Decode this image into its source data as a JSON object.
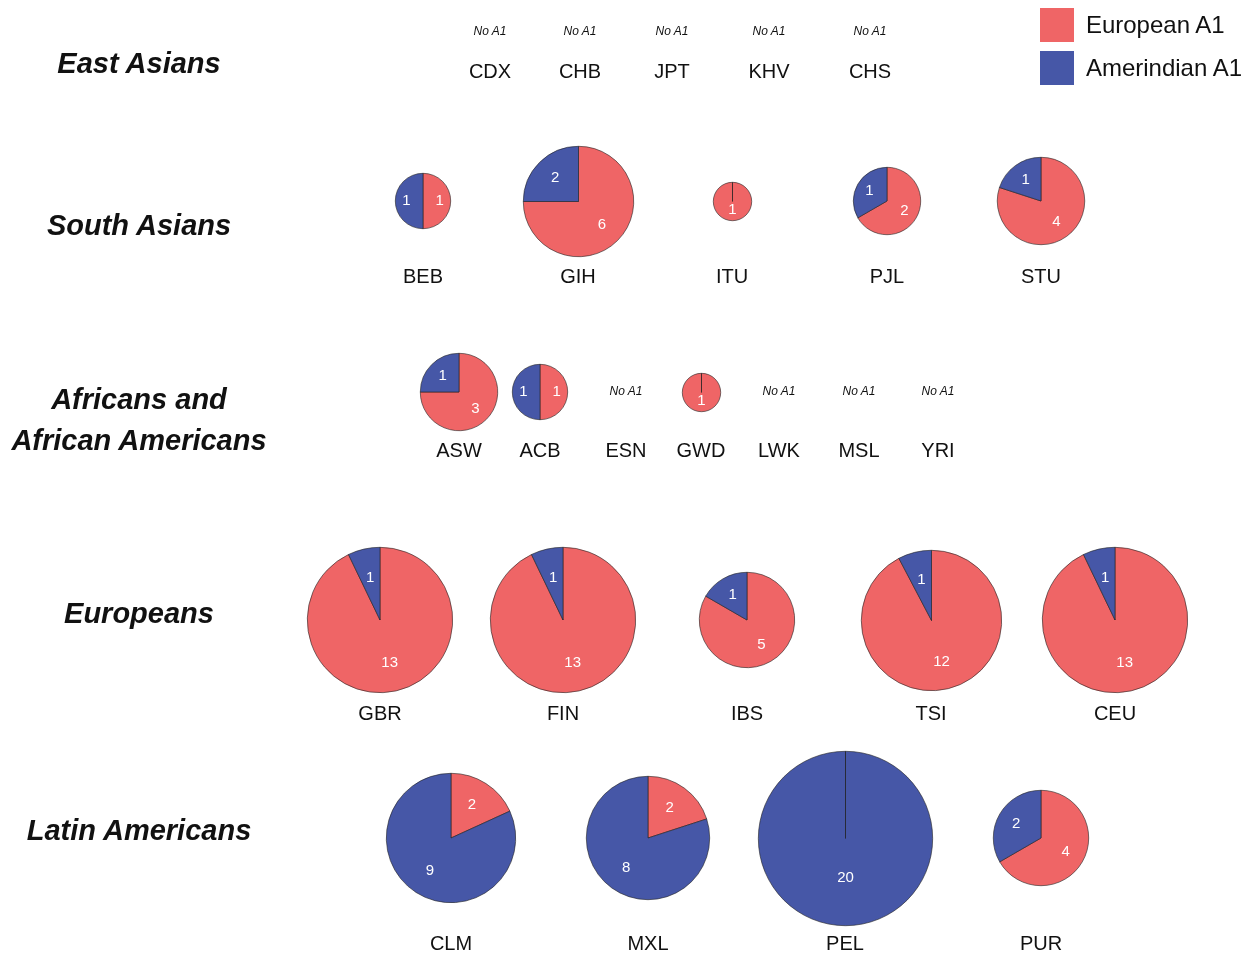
{
  "chart_data": [
    {
      "type": "other",
      "title": "East Asians"
    },
    {
      "type": "other",
      "title": "CDX",
      "annotations": [
        "No A1"
      ]
    },
    {
      "type": "other",
      "title": "CHB",
      "annotations": [
        "No A1"
      ]
    },
    {
      "type": "other",
      "title": "JPT",
      "annotations": [
        "No A1"
      ]
    },
    {
      "type": "other",
      "title": "KHV",
      "annotations": [
        "No A1"
      ]
    },
    {
      "type": "other",
      "title": "CHS",
      "annotations": [
        "No A1"
      ]
    },
    {
      "type": "other",
      "title": "South Asians"
    },
    {
      "type": "pie",
      "title": "BEB",
      "categories": [
        "European A1",
        "Amerindian A1"
      ],
      "values": [
        1,
        1
      ],
      "colors": [
        "#ef6566",
        "#4657a7"
      ],
      "data_labels": true,
      "legend": "top right"
    },
    {
      "type": "pie",
      "title": "GIH",
      "categories": [
        null,
        null
      ],
      "values": [
        6,
        2
      ],
      "colors": [
        "#ef6566",
        "#4657a7"
      ],
      "data_labels": true
    },
    {
      "type": "pie",
      "title": "ITU",
      "categories": [
        null,
        null
      ],
      "values": [
        1,
        0
      ],
      "colors": [
        "#ef6566",
        "#4657a7"
      ],
      "data_labels": true
    },
    {
      "type": "pie",
      "title": "PJL",
      "categories": [
        null,
        null
      ],
      "values": [
        2,
        1
      ],
      "colors": [
        "#ef6566",
        "#4657a7"
      ],
      "data_labels": true
    },
    {
      "type": "pie",
      "title": "STU",
      "categories": [
        null,
        null
      ],
      "values": [
        4,
        1
      ],
      "colors": [
        "#ef6566",
        "#4657a7"
      ],
      "data_labels": true
    },
    {
      "type": "other",
      "title": "Africans and African Americans"
    },
    {
      "type": "pie",
      "title": "ASW",
      "categories": [
        null,
        null
      ],
      "values": [
        3,
        1
      ],
      "colors": [
        "#ef6566",
        "#4657a7"
      ],
      "data_labels": true
    },
    {
      "type": "pie",
      "title": "ACB",
      "categories": [
        null,
        null
      ],
      "values": [
        1,
        1
      ],
      "colors": [
        "#ef6566",
        "#4657a7"
      ],
      "data_labels": true
    },
    {
      "type": "other",
      "title": "ESN",
      "annotations": [
        "No A1"
      ]
    },
    {
      "type": "pie",
      "title": "GWD",
      "categories": [
        null,
        null
      ],
      "values": [
        1,
        0
      ],
      "colors": [
        "#ef6566",
        "#4657a7"
      ],
      "data_labels": true
    },
    {
      "type": "other",
      "title": "LWK",
      "annotations": [
        "No A1"
      ]
    },
    {
      "type": "other",
      "title": "MSL",
      "annotations": [
        "No A1"
      ]
    },
    {
      "type": "other",
      "title": "YRI",
      "annotations": [
        "No A1"
      ]
    },
    {
      "type": "other",
      "title": "Europeans"
    },
    {
      "type": "pie",
      "title": "GBR",
      "categories": [
        null,
        null
      ],
      "values": [
        13,
        1
      ],
      "colors": [
        "#ef6566",
        "#4657a7"
      ],
      "data_labels": true
    },
    {
      "type": "pie",
      "title": "FIN",
      "categories": [
        null,
        null
      ],
      "values": [
        13,
        1
      ],
      "colors": [
        "#ef6566",
        "#4657a7"
      ],
      "data_labels": true
    },
    {
      "type": "pie",
      "title": "IBS",
      "categories": [
        null,
        null
      ],
      "values": [
        5,
        1
      ],
      "colors": [
        "#ef6566",
        "#4657a7"
      ],
      "data_labels": true
    },
    {
      "type": "pie",
      "title": "TSI",
      "categories": [
        null,
        null
      ],
      "values": [
        12,
        1
      ],
      "colors": [
        "#ef6566",
        "#4657a7"
      ],
      "data_labels": true
    },
    {
      "type": "pie",
      "title": "CEU",
      "categories": [
        null,
        null
      ],
      "values": [
        13,
        1
      ],
      "colors": [
        "#ef6566",
        "#4657a7"
      ],
      "data_labels": true
    },
    {
      "type": "other",
      "title": "Latin Americans"
    },
    {
      "type": "pie",
      "title": "CLM",
      "categories": [
        null,
        null
      ],
      "values": [
        2,
        9
      ],
      "colors": [
        "#ef6566",
        "#4657a7"
      ],
      "data_labels": true
    },
    {
      "type": "pie",
      "title": "MXL",
      "categories": [
        null,
        null
      ],
      "values": [
        2,
        8
      ],
      "colors": [
        "#ef6566",
        "#4657a7"
      ],
      "data_labels": true
    },
    {
      "type": "pie",
      "title": "PEL",
      "categories": [
        null,
        null
      ],
      "values": [
        0,
        20
      ],
      "colors": [
        "#ef6566",
        "#4657a7"
      ],
      "data_labels": true
    },
    {
      "type": "pie",
      "title": "PUR",
      "categories": [
        null,
        null
      ],
      "values": [
        4,
        2
      ],
      "colors": [
        "#ef6566",
        "#4657a7"
      ],
      "data_labels": true
    }
  ]
}
